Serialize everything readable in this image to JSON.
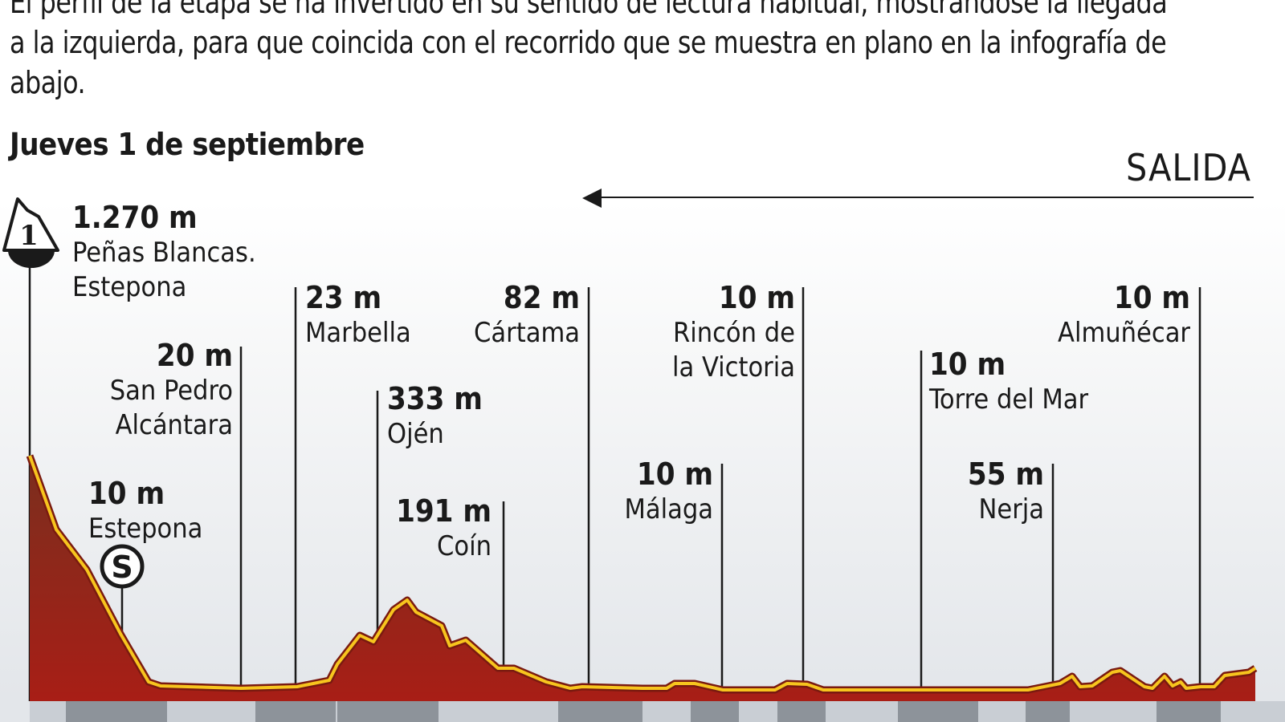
{
  "intro_text": "El perfil de la etapa se ha invertido en su sentido de lectura habitual, mostrándose la llegada a la izquierda, para que coincida con el recorrido que se muestra en plano en la infografía de abajo.",
  "date_title": "Jueves 1 de septiembre",
  "start_label": "SALIDA",
  "summit_badge": {
    "icon": "mountain-category-icon",
    "category": "1"
  },
  "sprint_badge": {
    "icon": "sprint-icon",
    "letter": "S"
  },
  "colors": {
    "profile_fill_top": "#7a2f1e",
    "profile_fill_bottom": "#a81e16",
    "profile_line": "#f7c51e",
    "text": "#1a1a1a"
  },
  "locations": [
    {
      "elevation": "1.270 m",
      "name": [
        "Peñas Blancas.",
        "Estepona"
      ]
    },
    {
      "elevation": "10 m",
      "name": [
        "Estepona"
      ]
    },
    {
      "elevation": "20 m",
      "name": [
        "San Pedro",
        "Alcántara"
      ]
    },
    {
      "elevation": "23 m",
      "name": [
        "Marbella"
      ]
    },
    {
      "elevation": "333 m",
      "name": [
        "Ojén"
      ]
    },
    {
      "elevation": "191 m",
      "name": [
        "Coín"
      ]
    },
    {
      "elevation": "82 m",
      "name": [
        "Cártama"
      ]
    },
    {
      "elevation": "10 m",
      "name": [
        "Málaga"
      ]
    },
    {
      "elevation": "10 m",
      "name": [
        "Rincón de",
        "la Victoria"
      ]
    },
    {
      "elevation": "10 m",
      "name": [
        "Torre del Mar"
      ]
    },
    {
      "elevation": "55 m",
      "name": [
        "Nerja"
      ]
    },
    {
      "elevation": "10 m",
      "name": [
        "Almuñécar"
      ]
    }
  ]
}
